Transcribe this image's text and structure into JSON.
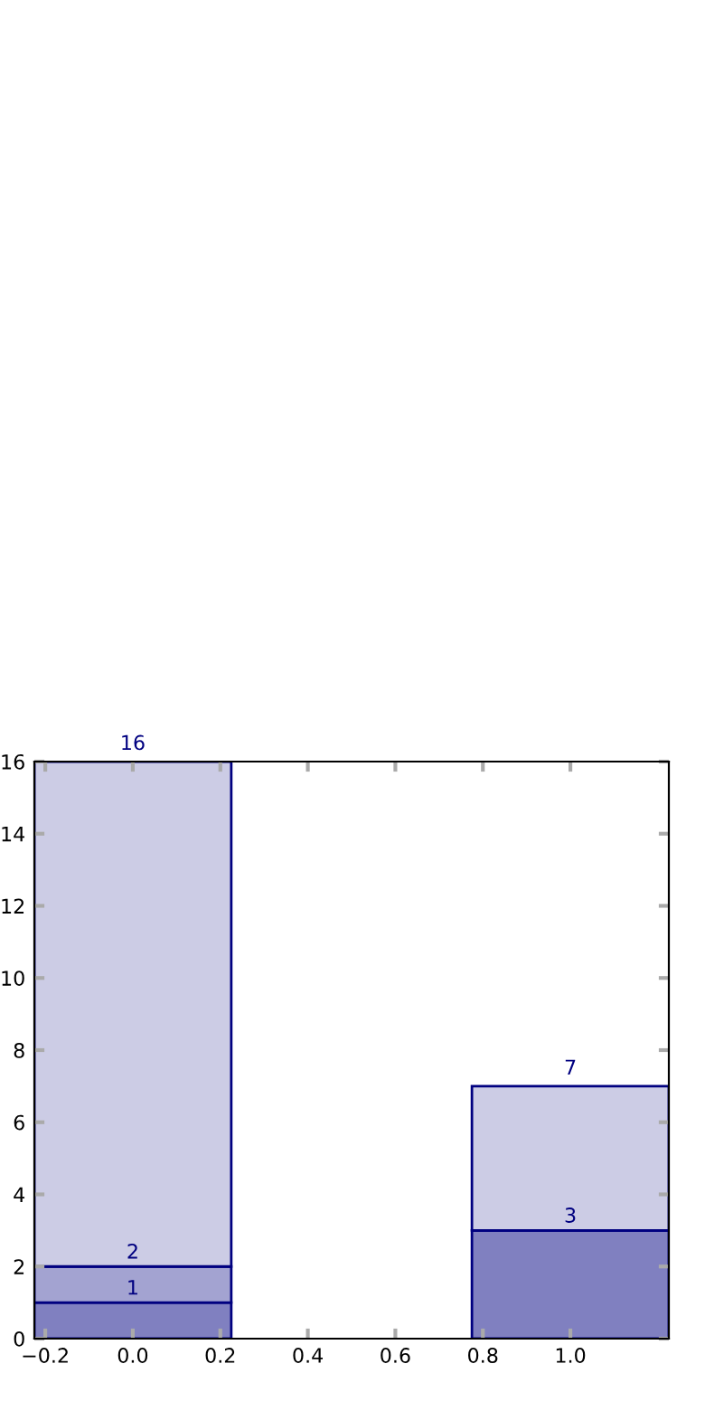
{
  "chart_data": {
    "type": "bar",
    "x": [
      0,
      1
    ],
    "stacked": true,
    "series": [
      {
        "color": "#8080c0",
        "values": [
          1,
          3
        ],
        "value_labels": [
          "1",
          "3"
        ]
      },
      {
        "color": "#a3a3d1",
        "values": [
          1,
          0
        ]
      },
      {
        "color": "#cccce5",
        "values": [
          14,
          4
        ]
      }
    ],
    "totals": [
      "16",
      "7"
    ],
    "annotations": [
      {
        "text": "2",
        "x": 0,
        "y": 2
      }
    ],
    "xlim": [
      -0.225,
      1.225
    ],
    "xticks": [
      {
        "value": -0.2,
        "label": "−0.2"
      },
      {
        "value": 0,
        "label": "0.0"
      },
      {
        "value": 0.2,
        "label": "0.2"
      },
      {
        "value": 0.4,
        "label": "0.4"
      },
      {
        "value": 0.6,
        "label": "0.6"
      },
      {
        "value": 0.8,
        "label": "0.8"
      },
      {
        "value": 1,
        "label": "1.0"
      }
    ],
    "ylim": [
      0,
      16
    ],
    "yticks": [
      0,
      2,
      4,
      6,
      8,
      10,
      12,
      14,
      16
    ],
    "grid": false,
    "legend": false
  }
}
